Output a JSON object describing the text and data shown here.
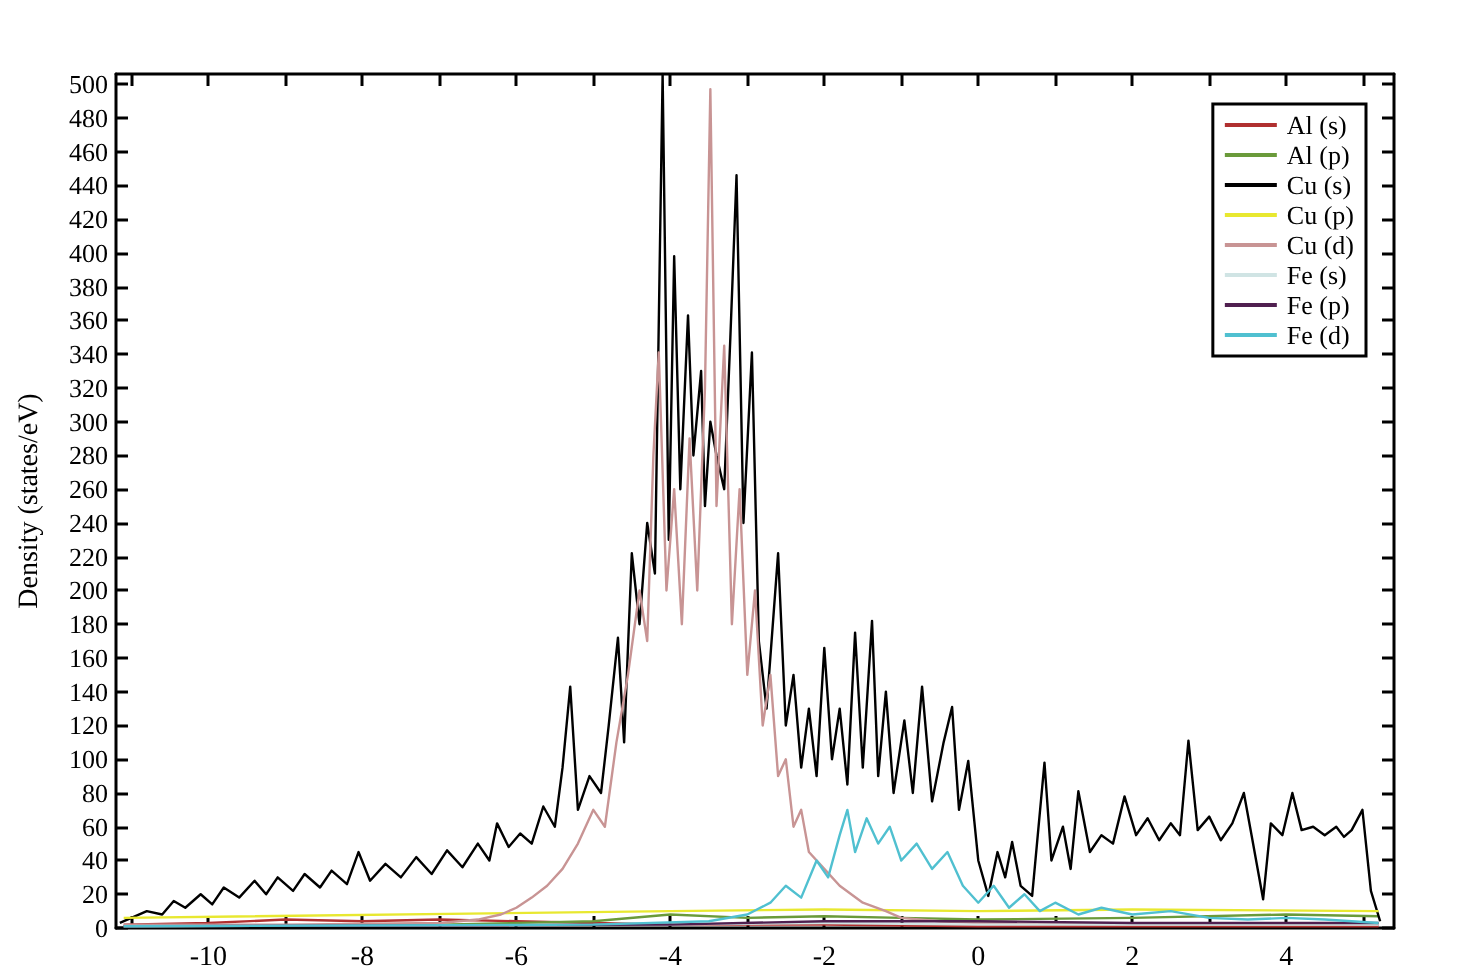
{
  "chart_data": {
    "type": "line",
    "ylabel": "Density (states/eV)",
    "xlim": [
      -11.2,
      5.4
    ],
    "ylim": [
      0,
      506
    ],
    "xticks": [
      {
        "value": -11,
        "label": null
      },
      -10,
      {
        "value": -9,
        "label": null
      },
      -8,
      {
        "value": -7,
        "label": null
      },
      -6,
      {
        "value": -5,
        "label": null
      },
      -4,
      {
        "value": -3,
        "label": null
      },
      -2,
      {
        "value": -1,
        "label": null
      },
      0,
      {
        "value": 1,
        "label": null
      },
      2,
      {
        "value": 3,
        "label": null
      },
      4,
      {
        "value": 5,
        "label": null
      }
    ],
    "yticks": [
      0,
      20,
      40,
      60,
      80,
      100,
      120,
      140,
      160,
      180,
      200,
      220,
      240,
      260,
      280,
      300,
      320,
      340,
      360,
      380,
      400,
      420,
      440,
      460,
      480,
      500
    ],
    "grid": false,
    "legend": "top right",
    "marker": "none",
    "line_style": "solid",
    "series": [
      {
        "name": "Al (s)",
        "color": "#b03030",
        "x": [
          -11.1,
          -10,
          -9,
          -8,
          -7,
          -6,
          -5,
          -4,
          -2,
          0,
          5.2
        ],
        "values": [
          2,
          3,
          5,
          4,
          5,
          4,
          3,
          2,
          2,
          1,
          1
        ]
      },
      {
        "name": "Al (p)",
        "color": "#6a9a3a",
        "x": [
          -11.1,
          -7,
          -5,
          -4,
          -3,
          -2,
          -1,
          0,
          2,
          4,
          5.2
        ],
        "values": [
          1,
          2,
          4,
          8,
          6,
          7,
          6,
          5,
          6,
          8,
          7
        ]
      },
      {
        "name": "Cu (s)",
        "color": "#000000",
        "x": [
          -11.15,
          -11,
          -10.8,
          -10.6,
          -10.45,
          -10.3,
          -10.1,
          -9.95,
          -9.8,
          -9.6,
          -9.4,
          -9.25,
          -9.1,
          -8.9,
          -8.75,
          -8.55,
          -8.4,
          -8.2,
          -8.05,
          -7.9,
          -7.7,
          -7.5,
          -7.3,
          -7.1,
          -6.9,
          -6.7,
          -6.5,
          -6.35,
          -6.25,
          -6.1,
          -5.95,
          -5.8,
          -5.65,
          -5.5,
          -5.4,
          -5.3,
          -5.2,
          -5.05,
          -4.9,
          -4.8,
          -4.68,
          -4.6,
          -4.5,
          -4.4,
          -4.3,
          -4.2,
          -4.1,
          -4.02,
          -3.95,
          -3.87,
          -3.77,
          -3.7,
          -3.6,
          -3.55,
          -3.48,
          -3.4,
          -3.3,
          -3.22,
          -3.14,
          -3.05,
          -2.94,
          -2.85,
          -2.75,
          -2.6,
          -2.5,
          -2.4,
          -2.3,
          -2.2,
          -2.1,
          -2.0,
          -1.9,
          -1.8,
          -1.7,
          -1.6,
          -1.5,
          -1.38,
          -1.3,
          -1.2,
          -1.1,
          -0.96,
          -0.85,
          -0.73,
          -0.6,
          -0.45,
          -0.34,
          -0.25,
          -0.13,
          0,
          0.13,
          0.25,
          0.35,
          0.44,
          0.55,
          0.7,
          0.86,
          0.95,
          1.1,
          1.2,
          1.3,
          1.45,
          1.6,
          1.75,
          1.9,
          2.05,
          2.2,
          2.35,
          2.5,
          2.62,
          2.73,
          2.85,
          3.0,
          3.15,
          3.3,
          3.45,
          3.55,
          3.7,
          3.8,
          3.95,
          4.08,
          4.2,
          4.35,
          4.5,
          4.65,
          4.75,
          4.85,
          4.99,
          5.1,
          5.22
        ],
        "values": [
          3,
          6,
          10,
          8,
          16,
          12,
          20,
          14,
          24,
          18,
          28,
          20,
          30,
          22,
          32,
          24,
          34,
          26,
          45,
          28,
          38,
          30,
          42,
          32,
          46,
          36,
          50,
          40,
          62,
          48,
          56,
          50,
          72,
          60,
          95,
          143,
          70,
          90,
          80,
          120,
          172,
          110,
          222,
          180,
          240,
          210,
          506,
          230,
          398,
          260,
          363,
          280,
          330,
          250,
          300,
          280,
          260,
          350,
          446,
          240,
          341,
          170,
          130,
          222,
          120,
          150,
          95,
          130,
          90,
          166,
          100,
          130,
          85,
          175,
          95,
          182,
          90,
          140,
          80,
          123,
          80,
          143,
          75,
          110,
          131,
          70,
          99,
          40,
          19,
          45,
          30,
          51,
          25,
          19,
          98,
          40,
          60,
          35,
          81,
          45,
          55,
          50,
          78,
          55,
          65,
          52,
          62,
          55,
          111,
          58,
          66,
          52,
          62,
          80,
          55,
          17,
          62,
          55,
          80,
          58,
          60,
          55,
          60,
          54,
          58,
          70,
          22,
          4
        ]
      },
      {
        "name": "Cu (p)",
        "color": "#e8e830",
        "x": [
          -11.1,
          -4,
          -2,
          0,
          2,
          5.2
        ],
        "values": [
          6,
          10,
          11,
          10,
          11,
          10
        ]
      },
      {
        "name": "Cu (d)",
        "color": "#c89494",
        "x": [
          -11.1,
          -9,
          -7,
          -6.5,
          -6.2,
          -6,
          -5.8,
          -5.6,
          -5.4,
          -5.2,
          -5.0,
          -4.85,
          -4.7,
          -4.55,
          -4.4,
          -4.3,
          -4.22,
          -4.15,
          -4.05,
          -3.95,
          -3.85,
          -3.75,
          -3.65,
          -3.55,
          -3.48,
          -3.4,
          -3.3,
          -3.2,
          -3.1,
          -3.0,
          -2.9,
          -2.8,
          -2.7,
          -2.6,
          -2.5,
          -2.4,
          -2.3,
          -2.2,
          -2.0,
          -1.8,
          -1.5,
          -1.2,
          -1,
          -0.5,
          0,
          2,
          5.2
        ],
        "values": [
          2,
          2,
          3,
          5,
          8,
          12,
          18,
          25,
          35,
          50,
          70,
          60,
          110,
          150,
          200,
          170,
          280,
          341,
          200,
          260,
          180,
          290,
          200,
          320,
          497,
          250,
          345,
          180,
          260,
          150,
          200,
          120,
          150,
          90,
          100,
          60,
          70,
          45,
          35,
          25,
          15,
          10,
          6,
          4,
          3,
          2,
          2
        ]
      },
      {
        "name": "Fe (s)",
        "color": "#d0e4e4",
        "x": [
          -11.1,
          -4,
          -2,
          0,
          3,
          5.2
        ],
        "values": [
          1,
          2,
          3,
          2,
          2,
          2
        ]
      },
      {
        "name": "Fe (p)",
        "color": "#502050",
        "x": [
          -11.1,
          -4,
          -2,
          0,
          2,
          5.2
        ],
        "values": [
          1,
          2,
          4,
          4,
          3,
          3
        ]
      },
      {
        "name": "Fe (d)",
        "color": "#50c0d0",
        "x": [
          -11.1,
          -5,
          -3.5,
          -3,
          -2.7,
          -2.5,
          -2.3,
          -2.1,
          -1.95,
          -1.8,
          -1.7,
          -1.6,
          -1.45,
          -1.3,
          -1.15,
          -1.0,
          -0.8,
          -0.6,
          -0.4,
          -0.2,
          0,
          0.2,
          0.4,
          0.6,
          0.8,
          1.0,
          1.3,
          1.6,
          2.0,
          2.5,
          3.0,
          3.5,
          4.0,
          4.5,
          5.2
        ],
        "values": [
          1,
          2,
          4,
          8,
          15,
          25,
          18,
          40,
          30,
          55,
          70,
          45,
          65,
          50,
          60,
          40,
          50,
          35,
          45,
          25,
          15,
          25,
          12,
          20,
          10,
          15,
          8,
          12,
          8,
          10,
          6,
          5,
          6,
          5,
          3
        ]
      }
    ]
  }
}
